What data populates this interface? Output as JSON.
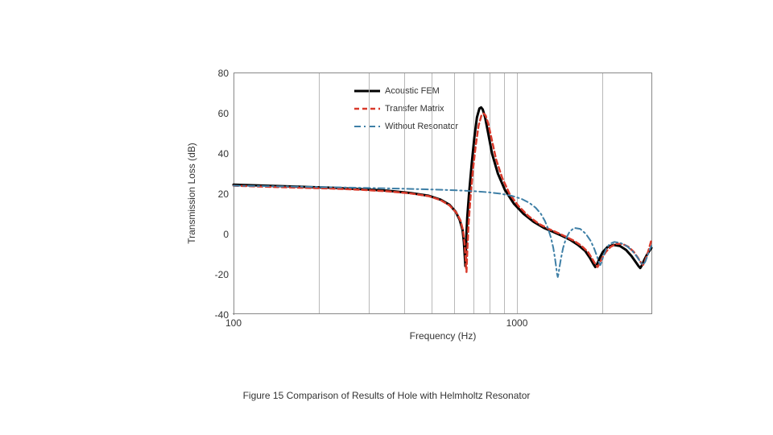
{
  "caption": "Figure 15 Comparison of Results of Hole with Helmholtz Resonator",
  "chart": {
    "type": "line",
    "xlabel": "Frequency (Hz)",
    "ylabel": "Transmission Loss (dB)",
    "x_scale": "log",
    "xlim": [
      100,
      3000
    ],
    "x_tick_labels": {
      "100": "100",
      "1000": "1000"
    },
    "x_gridline_values": [
      100,
      200,
      300,
      400,
      500,
      600,
      700,
      800,
      900,
      1000,
      2000,
      3000
    ],
    "ylim": [
      -40,
      80
    ],
    "ytick_step": 20,
    "y_ticks": [
      -40,
      -20,
      0,
      20,
      40,
      60,
      80
    ],
    "grid_on_y": false,
    "background_color": "#ffffff",
    "grid_color": "#b8b8b8",
    "axis_color": "#888888",
    "label_fontsize": 12,
    "tick_fontsize": 12,
    "legend_fontsize": 11,
    "legend_position": "upper-left-inside",
    "series": [
      {
        "name": "Acoustic FEM",
        "color": "#000000",
        "line_width": 3,
        "dash": "solid",
        "points": [
          [
            100,
            24.5
          ],
          [
            130,
            24.0
          ],
          [
            170,
            23.5
          ],
          [
            220,
            23.0
          ],
          [
            280,
            22.3
          ],
          [
            350,
            21.5
          ],
          [
            420,
            20.4
          ],
          [
            490,
            19.0
          ],
          [
            540,
            17.0
          ],
          [
            580,
            14.5
          ],
          [
            610,
            11.0
          ],
          [
            630,
            7.0
          ],
          [
            645,
            2.0
          ],
          [
            652,
            -4.0
          ],
          [
            656,
            -10.0
          ],
          [
            659,
            -14.0
          ],
          [
            660,
            -16.0
          ],
          [
            662,
            -10.0
          ],
          [
            665,
            -2.0
          ],
          [
            670,
            8.0
          ],
          [
            680,
            20.0
          ],
          [
            695,
            35.0
          ],
          [
            710,
            48.0
          ],
          [
            725,
            58.0
          ],
          [
            740,
            62.5
          ],
          [
            750,
            63.0
          ],
          [
            760,
            62.0
          ],
          [
            775,
            58.0
          ],
          [
            795,
            50.0
          ],
          [
            820,
            40.0
          ],
          [
            860,
            30.0
          ],
          [
            910,
            22.0
          ],
          [
            980,
            15.0
          ],
          [
            1060,
            10.0
          ],
          [
            1150,
            6.0
          ],
          [
            1250,
            3.0
          ],
          [
            1350,
            1.0
          ],
          [
            1450,
            -1.0
          ],
          [
            1550,
            -3.0
          ],
          [
            1650,
            -5.5
          ],
          [
            1750,
            -8.5
          ],
          [
            1820,
            -12.0
          ],
          [
            1870,
            -15.0
          ],
          [
            1900,
            -16.5
          ],
          [
            1930,
            -15.0
          ],
          [
            1970,
            -12.0
          ],
          [
            2020,
            -9.0
          ],
          [
            2100,
            -6.5
          ],
          [
            2200,
            -5.5
          ],
          [
            2320,
            -6.0
          ],
          [
            2440,
            -8.0
          ],
          [
            2550,
            -11.0
          ],
          [
            2640,
            -14.0
          ],
          [
            2700,
            -16.0
          ],
          [
            2740,
            -17.0
          ],
          [
            2780,
            -15.5
          ],
          [
            2830,
            -13.0
          ],
          [
            2890,
            -10.5
          ],
          [
            2950,
            -8.5
          ],
          [
            3000,
            -7.0
          ]
        ]
      },
      {
        "name": "Transfer Matrix",
        "color": "#d93a2b",
        "line_width": 2.5,
        "dash": "6,4",
        "points": [
          [
            100,
            24.0
          ],
          [
            130,
            23.5
          ],
          [
            170,
            23.0
          ],
          [
            220,
            22.6
          ],
          [
            280,
            22.0
          ],
          [
            350,
            21.2
          ],
          [
            420,
            20.2
          ],
          [
            490,
            18.8
          ],
          [
            540,
            16.8
          ],
          [
            580,
            14.2
          ],
          [
            614,
            10.5
          ],
          [
            635,
            6.5
          ],
          [
            648,
            1.5
          ],
          [
            656,
            -5.0
          ],
          [
            661,
            -12.0
          ],
          [
            664,
            -17.0
          ],
          [
            666,
            -19.0
          ],
          [
            668,
            -14.0
          ],
          [
            672,
            -5.0
          ],
          [
            678,
            6.0
          ],
          [
            688,
            18.0
          ],
          [
            702,
            32.0
          ],
          [
            718,
            44.0
          ],
          [
            735,
            54.0
          ],
          [
            752,
            59.0
          ],
          [
            765,
            60.0
          ],
          [
            778,
            59.0
          ],
          [
            795,
            55.0
          ],
          [
            818,
            47.0
          ],
          [
            848,
            37.0
          ],
          [
            890,
            28.0
          ],
          [
            945,
            20.0
          ],
          [
            1015,
            14.0
          ],
          [
            1100,
            9.0
          ],
          [
            1200,
            5.0
          ],
          [
            1300,
            2.5
          ],
          [
            1400,
            0.5
          ],
          [
            1500,
            -1.5
          ],
          [
            1600,
            -3.5
          ],
          [
            1700,
            -6.0
          ],
          [
            1790,
            -9.0
          ],
          [
            1855,
            -12.5
          ],
          [
            1900,
            -15.0
          ],
          [
            1935,
            -16.5
          ],
          [
            1965,
            -15.0
          ],
          [
            2010,
            -12.0
          ],
          [
            2070,
            -9.0
          ],
          [
            2150,
            -6.5
          ],
          [
            2250,
            -5.0
          ],
          [
            2370,
            -5.0
          ],
          [
            2490,
            -6.5
          ],
          [
            2600,
            -9.0
          ],
          [
            2690,
            -12.0
          ],
          [
            2760,
            -14.5
          ],
          [
            2800,
            -15.5
          ],
          [
            2840,
            -14.0
          ],
          [
            2890,
            -11.0
          ],
          [
            2940,
            -7.5
          ],
          [
            2980,
            -4.5
          ],
          [
            3000,
            -3.0
          ]
        ]
      },
      {
        "name": "Without Resonator",
        "color": "#3e7fa6",
        "line_width": 2,
        "dash": "8,4,2,4",
        "points": [
          [
            100,
            24.0
          ],
          [
            140,
            23.7
          ],
          [
            190,
            23.4
          ],
          [
            250,
            23.1
          ],
          [
            320,
            22.8
          ],
          [
            400,
            22.5
          ],
          [
            480,
            22.2
          ],
          [
            560,
            21.9
          ],
          [
            640,
            21.6
          ],
          [
            720,
            21.2
          ],
          [
            800,
            20.7
          ],
          [
            880,
            20.0
          ],
          [
            960,
            19.0
          ],
          [
            1040,
            17.5
          ],
          [
            1110,
            15.5
          ],
          [
            1170,
            13.0
          ],
          [
            1220,
            10.0
          ],
          [
            1260,
            6.5
          ],
          [
            1295,
            2.5
          ],
          [
            1325,
            -2.0
          ],
          [
            1350,
            -7.0
          ],
          [
            1368,
            -12.0
          ],
          [
            1382,
            -16.5
          ],
          [
            1392,
            -20.0
          ],
          [
            1400,
            -21.5
          ],
          [
            1408,
            -20.0
          ],
          [
            1420,
            -16.5
          ],
          [
            1438,
            -12.0
          ],
          [
            1462,
            -7.0
          ],
          [
            1495,
            -2.5
          ],
          [
            1540,
            1.0
          ],
          [
            1600,
            3.0
          ],
          [
            1680,
            2.5
          ],
          [
            1760,
            0.0
          ],
          [
            1830,
            -3.5
          ],
          [
            1885,
            -7.5
          ],
          [
            1925,
            -11.0
          ],
          [
            1955,
            -14.0
          ],
          [
            1980,
            -15.5
          ],
          [
            2000,
            -14.0
          ],
          [
            2030,
            -11.0
          ],
          [
            2075,
            -7.5
          ],
          [
            2135,
            -5.0
          ],
          [
            2220,
            -4.0
          ],
          [
            2330,
            -4.5
          ],
          [
            2450,
            -6.0
          ],
          [
            2570,
            -8.5
          ],
          [
            2670,
            -11.5
          ],
          [
            2745,
            -14.0
          ],
          [
            2800,
            -15.5
          ],
          [
            2850,
            -14.0
          ],
          [
            2905,
            -11.0
          ],
          [
            2955,
            -8.0
          ],
          [
            3000,
            -6.0
          ]
        ]
      }
    ]
  }
}
